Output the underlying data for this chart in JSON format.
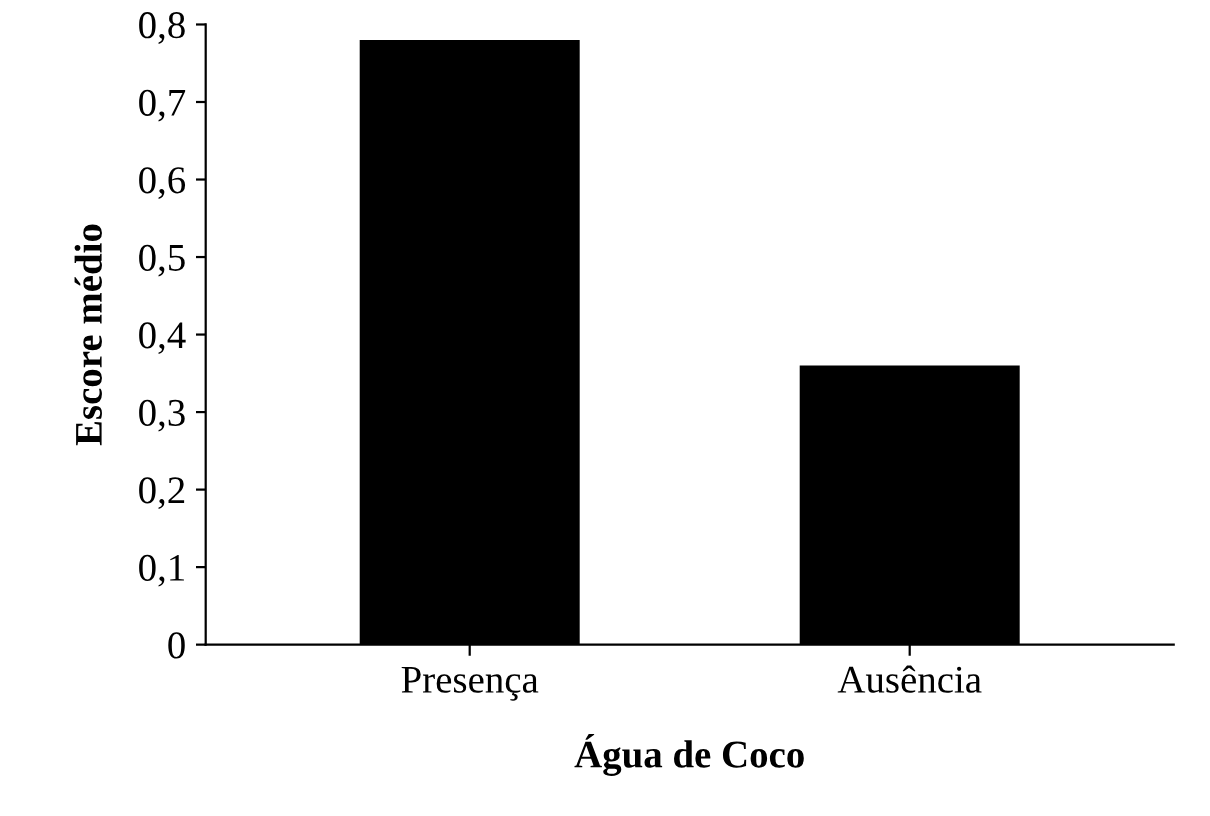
{
  "chart_data": {
    "type": "bar",
    "xlabel": "Água de Coco",
    "ylabel": "Escore médio",
    "categories": [
      "Presença",
      "Ausência"
    ],
    "values": [
      0.78,
      0.36
    ],
    "color": "#000000",
    "ylim": [
      0,
      0.8
    ],
    "yticks": [
      0,
      {
        "value": 0.1,
        "label": "0,1"
      },
      {
        "value": 0.2,
        "label": "0,2"
      },
      {
        "value": 0.3,
        "label": "0,3"
      },
      {
        "value": 0.4,
        "label": "0,4"
      },
      {
        "value": 0.5,
        "label": "0,5"
      },
      {
        "value": 0.6,
        "label": "0,6"
      },
      {
        "value": 0.7,
        "label": "0,7"
      },
      {
        "value": 0.8,
        "label": "0,8"
      }
    ],
    "grid": false,
    "legend": false
  }
}
